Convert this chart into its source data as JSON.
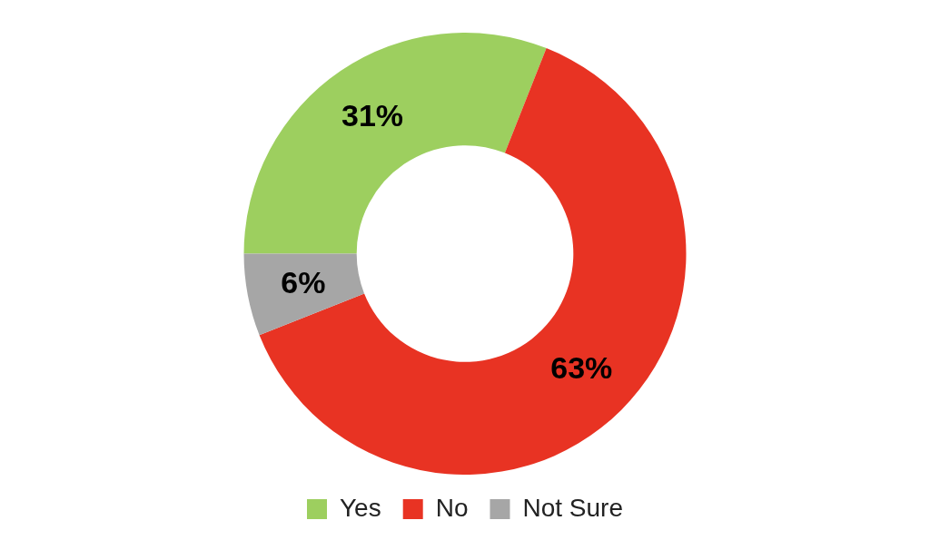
{
  "chart_data": {
    "type": "donut",
    "categories": [
      "Yes",
      "No",
      "Not Sure"
    ],
    "values": [
      31,
      63,
      6
    ],
    "colors": [
      "#9dcf5f",
      "#e83323",
      "#a6a6a6"
    ],
    "value_labels": [
      "31%",
      "63%",
      "6%"
    ],
    "legend": "bottom"
  }
}
